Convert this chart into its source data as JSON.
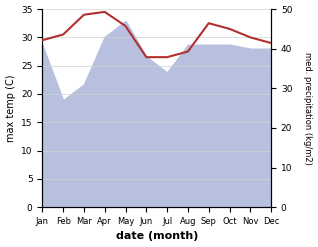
{
  "months": [
    "Jan",
    "Feb",
    "Mar",
    "Apr",
    "May",
    "Jun",
    "Jul",
    "Aug",
    "Sep",
    "Oct",
    "Nov",
    "Dec"
  ],
  "month_positions": [
    0,
    1,
    2,
    3,
    4,
    5,
    6,
    7,
    8,
    9,
    10,
    11
  ],
  "temperature": [
    29.5,
    30.5,
    34.0,
    34.5,
    32.0,
    26.5,
    26.5,
    27.5,
    32.5,
    31.5,
    30.0,
    29.0
  ],
  "precipitation": [
    41.0,
    27.0,
    31.0,
    43.0,
    47.0,
    38.0,
    34.0,
    41.0,
    41.0,
    41.0,
    40.0,
    40.0
  ],
  "temp_color": "#b03030",
  "precip_fill_color": "#b8c0e0",
  "precip_fill_alpha": 1.0,
  "ylabel_left": "max temp (C)",
  "ylabel_right": "med. precipitation (kg/m2)",
  "xlabel": "date (month)",
  "ylim_left": [
    0,
    35
  ],
  "ylim_right": [
    0,
    50
  ],
  "yticks_left": [
    0,
    5,
    10,
    15,
    20,
    25,
    30,
    35
  ],
  "yticks_right": [
    0,
    10,
    20,
    30,
    40,
    50
  ],
  "bg_color": "#ffffff",
  "grid_color": "#d0d0d0"
}
